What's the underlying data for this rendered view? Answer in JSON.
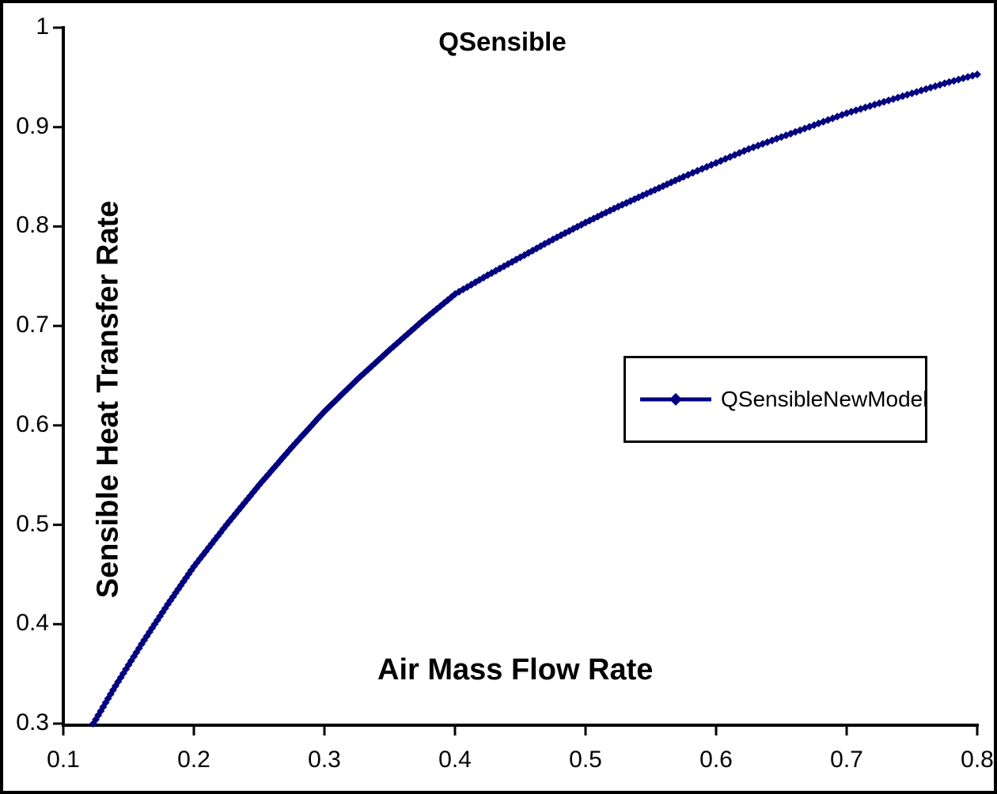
{
  "window": {
    "background": "#ffffff",
    "frame_border_color": "#000000"
  },
  "chart_data": {
    "type": "line",
    "title": "QSensible",
    "xlabel": "Air Mass Flow Rate",
    "ylabel": "Sensible Heat Transfer Rate",
    "xlim": [
      0.1,
      0.8
    ],
    "ylim": [
      0.3,
      1.0
    ],
    "xticks": [
      0.1,
      0.2,
      0.3,
      0.4,
      0.5,
      0.6,
      0.7,
      0.8
    ],
    "xtick_labels": [
      "0.1",
      "0.2",
      "0.3",
      "0.4",
      "0.5",
      "0.6",
      "0.7",
      "0.8"
    ],
    "yticks": [
      1.0,
      0.9,
      0.8,
      0.7,
      0.6,
      0.5,
      0.4,
      0.3
    ],
    "ytick_labels": [
      "1",
      "0.9",
      "0.8",
      "0.7",
      "0.6",
      "0.5",
      "0.4",
      "0.3"
    ],
    "grid": false,
    "axis_color": "#000000",
    "legend_position": "middle-right",
    "series": [
      {
        "name": "QSensibleNewModel",
        "color": "#000080",
        "marker": "diamond",
        "points": [
          [
            0.123,
            0.3
          ],
          [
            0.14,
            0.338
          ],
          [
            0.16,
            0.38
          ],
          [
            0.18,
            0.42
          ],
          [
            0.2,
            0.458
          ],
          [
            0.225,
            0.5
          ],
          [
            0.25,
            0.54
          ],
          [
            0.275,
            0.578
          ],
          [
            0.3,
            0.614
          ],
          [
            0.325,
            0.646
          ],
          [
            0.35,
            0.676
          ],
          [
            0.375,
            0.705
          ],
          [
            0.4,
            0.732
          ],
          [
            0.425,
            0.751
          ],
          [
            0.45,
            0.769
          ],
          [
            0.475,
            0.787
          ],
          [
            0.5,
            0.804
          ],
          [
            0.525,
            0.82
          ],
          [
            0.55,
            0.835
          ],
          [
            0.575,
            0.85
          ],
          [
            0.6,
            0.864
          ],
          [
            0.625,
            0.878
          ],
          [
            0.65,
            0.89
          ],
          [
            0.675,
            0.902
          ],
          [
            0.7,
            0.914
          ],
          [
            0.725,
            0.924
          ],
          [
            0.75,
            0.934
          ],
          [
            0.775,
            0.944
          ],
          [
            0.8,
            0.953
          ]
        ]
      }
    ]
  }
}
